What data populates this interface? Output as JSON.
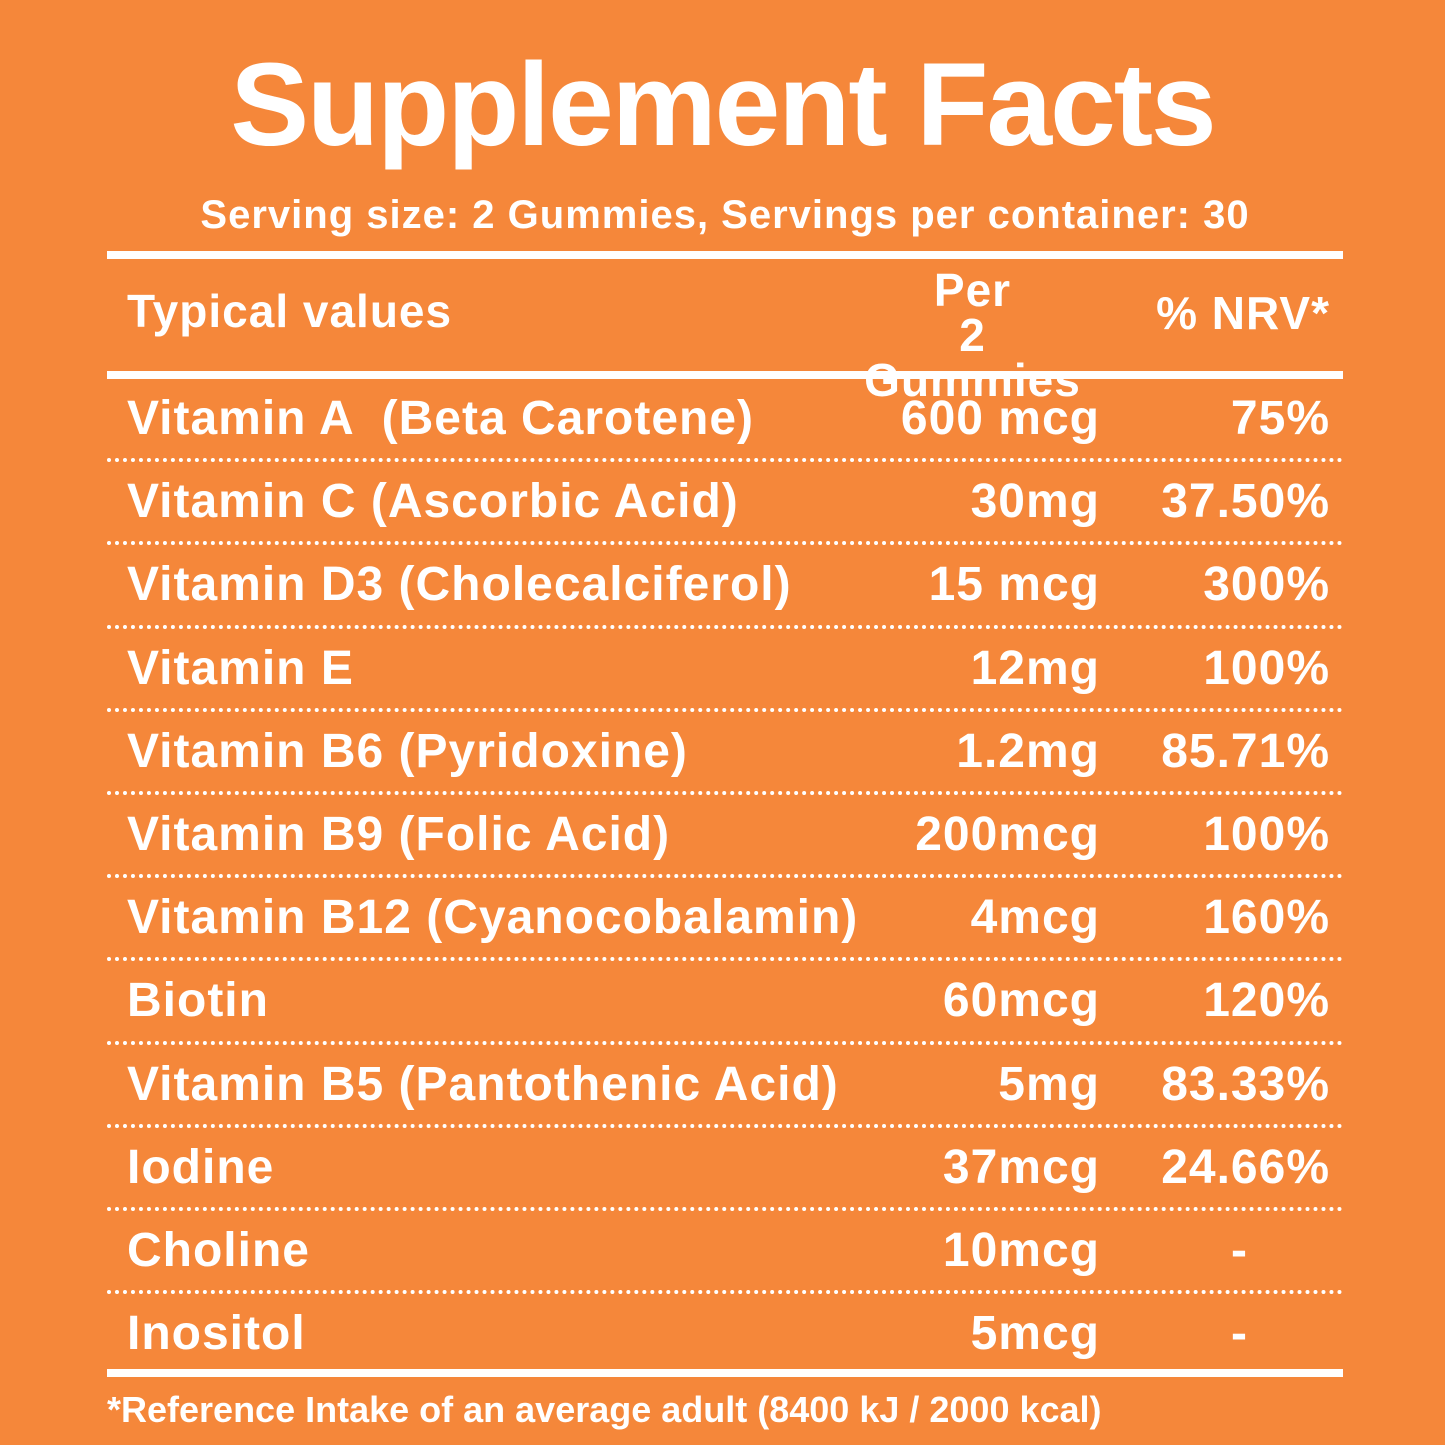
{
  "header": {
    "title": "Supplement Facts",
    "serving": "Serving size: 2 Gummies, Servings per container: 30"
  },
  "table": {
    "columns": [
      "Typical values",
      "Per 2 Gummies",
      "% NRV*"
    ],
    "rows": [
      [
        "Vitamin A  (Beta Carotene)",
        "600 mcg",
        "75%"
      ],
      [
        "Vitamin C (Ascorbic Acid)",
        "30mg",
        "37.50%"
      ],
      [
        "Vitamin D3 (Cholecalciferol)",
        "15 mcg",
        "300%"
      ],
      [
        "Vitamin E",
        "12mg",
        "100%"
      ],
      [
        "Vitamin B6 (Pyridoxine)",
        "1.2mg",
        "85.71%"
      ],
      [
        "Vitamin B9 (Folic Acid)",
        "200mcg",
        "100%"
      ],
      [
        "Vitamin B12 (Cyanocobalamin)",
        "4mcg",
        "160%"
      ],
      [
        "Biotin",
        "60mcg",
        "120%"
      ],
      [
        "Vitamin B5 (Pantothenic Acid)",
        "5mg",
        "83.33%"
      ],
      [
        "Iodine",
        "37mcg",
        "24.66%"
      ],
      [
        "Choline",
        "10mcg",
        "-"
      ],
      [
        "Inositol",
        "5mcg",
        "-"
      ]
    ]
  },
  "footnote": "*Reference Intake of an average adult (8400 kJ / 2000 kcal)"
}
